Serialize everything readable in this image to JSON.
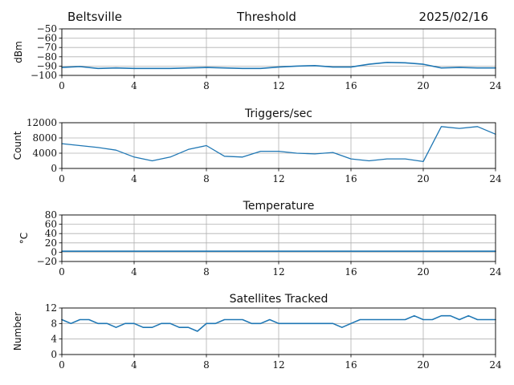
{
  "header": {
    "left": "Beltsville",
    "center": "Threshold",
    "right": "2025/02/16"
  },
  "colors": {
    "series": "#1f77b4",
    "grid": "#b0b0b0",
    "frame": "#000000"
  },
  "chart_data": [
    {
      "type": "line",
      "title": "",
      "ylabel": "dBm",
      "xlim": [
        0,
        24
      ],
      "ylim": [
        -100,
        -50
      ],
      "xticks": [
        "0",
        "4",
        "8",
        "12",
        "16",
        "20",
        "24"
      ],
      "yticks": [
        -100,
        -90,
        -80,
        -70,
        -60,
        -50
      ],
      "ytick_labels": [
        "−100",
        "−90",
        "−80",
        "−70",
        "−60",
        "−50"
      ],
      "grid": true,
      "series": [
        {
          "x": [
            0,
            1,
            2,
            3,
            4,
            5,
            6,
            7,
            8,
            9,
            10,
            11,
            12,
            13,
            14,
            15,
            16,
            17,
            18,
            19,
            20,
            21,
            22,
            23,
            24
          ],
          "values": [
            -91.5,
            -90.5,
            -92.5,
            -92,
            -92.5,
            -92.5,
            -92.5,
            -92,
            -91.5,
            -92,
            -92.5,
            -92.5,
            -91,
            -90,
            -89.5,
            -91,
            -91,
            -88,
            -86,
            -86.5,
            -88,
            -92,
            -91.5,
            -92,
            -92
          ]
        }
      ]
    },
    {
      "type": "line",
      "title": "Triggers/sec",
      "ylabel": "Count",
      "xlim": [
        0,
        24
      ],
      "ylim": [
        0,
        12000
      ],
      "xticks": [
        "0",
        "4",
        "8",
        "12",
        "16",
        "20",
        "24"
      ],
      "yticks": [
        0,
        4000,
        8000,
        12000
      ],
      "ytick_labels": [
        "0",
        "4000",
        "8000",
        "12000"
      ],
      "grid": true,
      "series": [
        {
          "x": [
            0,
            1,
            2,
            3,
            4,
            5,
            6,
            7,
            8,
            9,
            10,
            11,
            12,
            13,
            14,
            15,
            16,
            17,
            18,
            19,
            20,
            21,
            22,
            23,
            24
          ],
          "values": [
            6500,
            6000,
            5500,
            4800,
            3000,
            2000,
            3000,
            5000,
            6000,
            3200,
            3000,
            4500,
            4500,
            4000,
            3800,
            4200,
            2500,
            2000,
            2500,
            2500,
            1800,
            11000,
            10500,
            11000,
            9000
          ]
        }
      ]
    },
    {
      "type": "line",
      "title": "Temperature",
      "ylabel": "°C",
      "xlim": [
        0,
        24
      ],
      "ylim": [
        -20,
        80
      ],
      "xticks": [
        "0",
        "4",
        "8",
        "12",
        "16",
        "20",
        "24"
      ],
      "yticks": [
        -20,
        0,
        20,
        40,
        60,
        80
      ],
      "ytick_labels": [
        "−20",
        "0",
        "20",
        "40",
        "60",
        "80"
      ],
      "grid": true,
      "series": [
        {
          "x": [
            0,
            24
          ],
          "values": [
            2,
            2
          ]
        }
      ]
    },
    {
      "type": "line",
      "title": "Satellites Tracked",
      "ylabel": "Number",
      "xlim": [
        0,
        24
      ],
      "ylim": [
        0,
        12
      ],
      "xticks": [
        "0",
        "4",
        "8",
        "12",
        "16",
        "20",
        "24"
      ],
      "yticks": [
        0,
        4,
        8,
        12
      ],
      "ytick_labels": [
        "0",
        "4",
        "8",
        "12"
      ],
      "grid": true,
      "series": [
        {
          "x": [
            0,
            0.5,
            1,
            1.5,
            2,
            2.5,
            3,
            3.5,
            4,
            4.5,
            5,
            5.5,
            6,
            6.5,
            7,
            7.5,
            8,
            8.5,
            9,
            9.5,
            10,
            10.5,
            11,
            11.5,
            12,
            12.5,
            13,
            13.5,
            14,
            14.5,
            15,
            15.5,
            16,
            16.5,
            17,
            17.5,
            18,
            18.5,
            19,
            19.5,
            20,
            20.5,
            21,
            21.5,
            22,
            22.5,
            23,
            23.5,
            24
          ],
          "values": [
            9,
            8,
            9,
            9,
            8,
            8,
            7,
            8,
            8,
            7,
            7,
            8,
            8,
            7,
            7,
            6,
            8,
            8,
            9,
            9,
            9,
            8,
            8,
            9,
            8,
            8,
            8,
            8,
            8,
            8,
            8,
            7,
            8,
            9,
            9,
            9,
            9,
            9,
            9,
            10,
            9,
            9,
            10,
            10,
            9,
            10,
            9,
            9,
            9
          ]
        }
      ]
    }
  ]
}
